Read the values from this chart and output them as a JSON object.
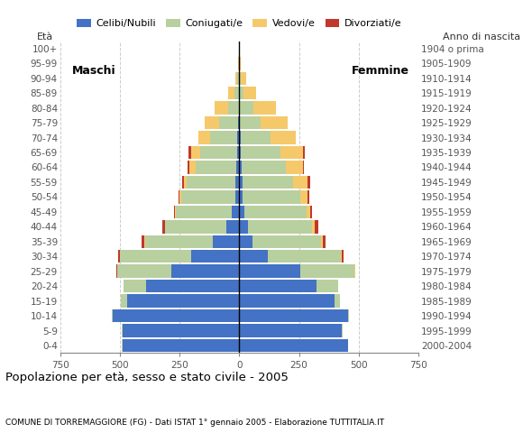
{
  "age_groups": [
    "100+",
    "95-99",
    "90-94",
    "85-89",
    "80-84",
    "75-79",
    "70-74",
    "65-69",
    "60-64",
    "55-59",
    "50-54",
    "45-49",
    "40-44",
    "35-39",
    "30-34",
    "25-29",
    "20-24",
    "15-19",
    "10-14",
    "5-9",
    "0-4"
  ],
  "birth_years": [
    "1904 o prima",
    "1905-1909",
    "1910-1914",
    "1915-1919",
    "1920-1924",
    "1925-1929",
    "1930-1934",
    "1935-1939",
    "1940-1944",
    "1945-1949",
    "1950-1954",
    "1955-1959",
    "1960-1964",
    "1965-1969",
    "1970-1974",
    "1975-1979",
    "1980-1984",
    "1985-1989",
    "1990-1994",
    "1995-1999",
    "2000-2004"
  ],
  "colors": {
    "celibe": "#4472c4",
    "coniugato": "#b8cfa0",
    "vedovo": "#f5c96a",
    "divorziato": "#c0392b"
  },
  "males": {
    "celibe": [
      0,
      0,
      0,
      2,
      3,
      5,
      8,
      10,
      12,
      15,
      18,
      30,
      55,
      110,
      200,
      285,
      390,
      470,
      530,
      490,
      490
    ],
    "coniugato": [
      2,
      3,
      8,
      18,
      45,
      80,
      115,
      155,
      170,
      205,
      225,
      235,
      255,
      285,
      298,
      225,
      95,
      25,
      5,
      2,
      1
    ],
    "vedovo": [
      1,
      2,
      10,
      28,
      55,
      58,
      48,
      38,
      28,
      12,
      6,
      4,
      2,
      2,
      1,
      1,
      1,
      0,
      0,
      0,
      0
    ],
    "divorziato": [
      0,
      0,
      0,
      0,
      0,
      0,
      0,
      8,
      6,
      8,
      6,
      5,
      10,
      12,
      8,
      2,
      0,
      0,
      0,
      0,
      0
    ]
  },
  "females": {
    "celibe": [
      0,
      0,
      0,
      2,
      3,
      4,
      5,
      8,
      10,
      12,
      15,
      22,
      38,
      55,
      120,
      255,
      325,
      400,
      455,
      430,
      455
    ],
    "coniugato": [
      1,
      2,
      5,
      15,
      55,
      85,
      125,
      165,
      185,
      215,
      240,
      258,
      268,
      288,
      305,
      228,
      88,
      22,
      5,
      2,
      1
    ],
    "vedovo": [
      2,
      6,
      22,
      55,
      95,
      115,
      105,
      92,
      72,
      58,
      32,
      16,
      8,
      5,
      3,
      2,
      1,
      0,
      0,
      0,
      0
    ],
    "divorziato": [
      0,
      0,
      0,
      0,
      0,
      0,
      0,
      8,
      5,
      12,
      6,
      10,
      16,
      12,
      8,
      2,
      0,
      0,
      0,
      0,
      0
    ]
  },
  "title": "Popolazione per età, sesso e stato civile - 2005",
  "subtitle": "COMUNE DI TORREMAGGIORE (FG) - Dati ISTAT 1° gennaio 2005 - Elaborazione TUTTITALIA.IT",
  "xlim": 750,
  "legend_labels": [
    "Celibi/Nubili",
    "Coniugati/e",
    "Vedovi/e",
    "Divorziati/e"
  ],
  "ylabel_left": "Età",
  "ylabel_right": "Anno di nascita",
  "maschi_label": "Maschi",
  "femmine_label": "Femmine",
  "xtick_labels": [
    "750",
    "500",
    "250",
    "0",
    "250",
    "500",
    "750"
  ],
  "xtick_vals": [
    -750,
    -500,
    -250,
    0,
    250,
    500,
    750
  ],
  "bg_color": "#ffffff",
  "bar_edge": "none",
  "grid_color": "#aaaaaa",
  "spine_color": "#888888",
  "tick_label_color": "#555555"
}
